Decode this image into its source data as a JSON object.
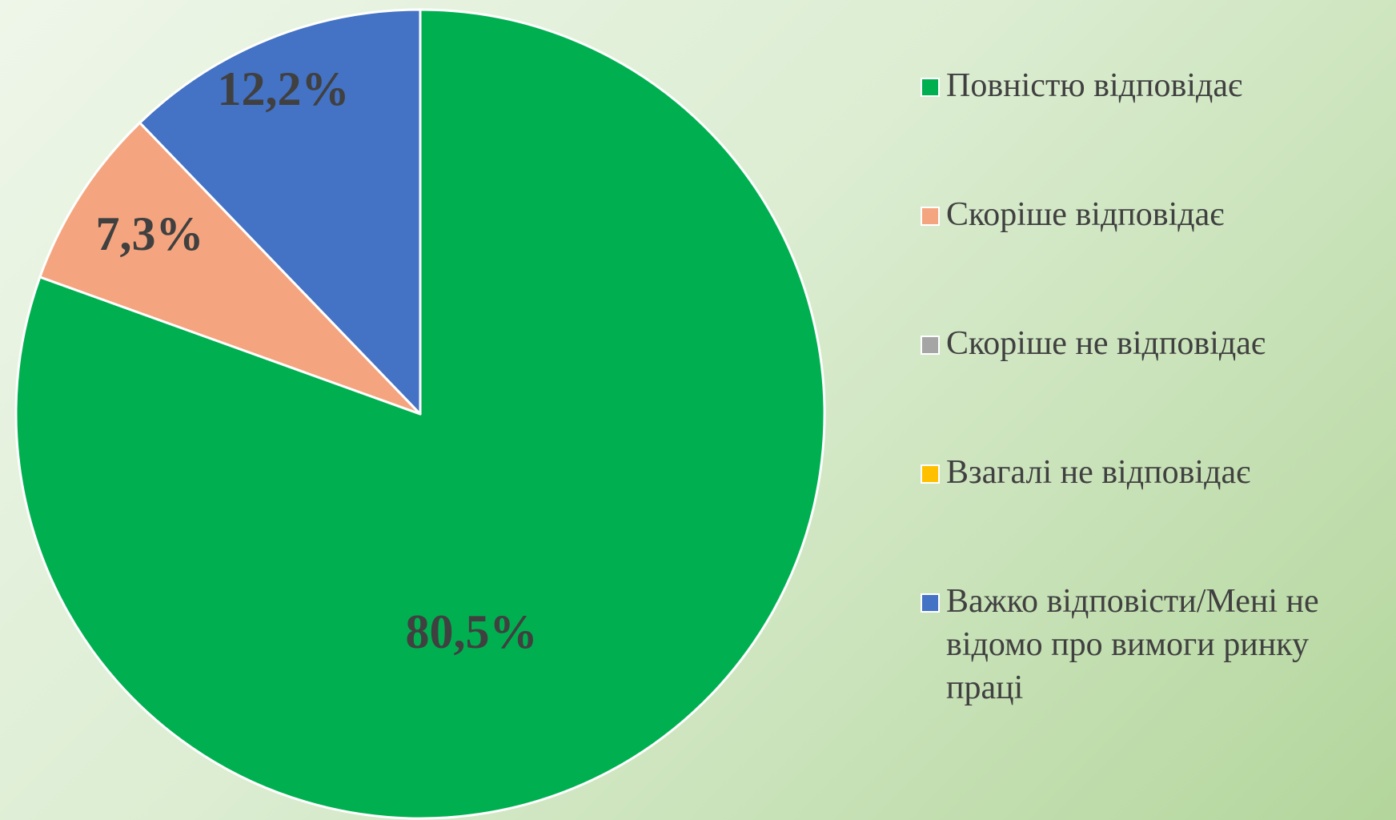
{
  "chart_data": {
    "type": "pie",
    "categories": [
      "Повністю відповідає",
      "Скоріше відповідає",
      "Скоріше не відповідає",
      "Взагалі не відповідає",
      "Важко відповісти/Мені не відомо про вимоги ринку праці"
    ],
    "values": [
      80.5,
      7.3,
      0,
      0,
      12.2
    ],
    "value_labels": [
      "80,5%",
      "7,3%",
      null,
      null,
      "12,2%"
    ],
    "colors": [
      "#00b050",
      "#f4a57f",
      "#a5a5a5",
      "#ffc000",
      "#4472c4"
    ],
    "legend": "right"
  }
}
